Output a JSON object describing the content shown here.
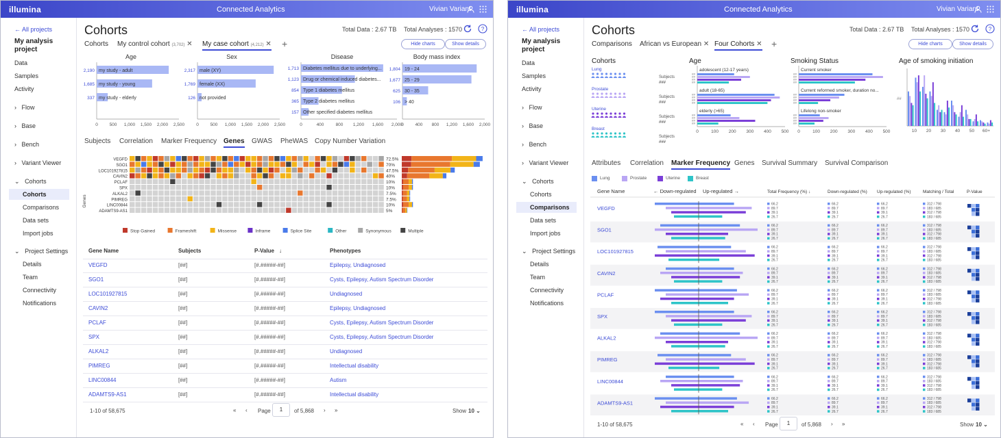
{
  "brand": "illumina",
  "app_title": "Connected Analytics",
  "user_name": "Vivian Variant",
  "left": {
    "nav": {
      "back": "All projects",
      "project": "My analysis project",
      "items": [
        "Data",
        "Samples",
        "Activity"
      ],
      "groups": [
        "Flow",
        "Base",
        "Bench",
        "Variant Viewer"
      ],
      "cohorts_group": "Cohorts",
      "cohort_items": [
        "Cohorts",
        "Comparisons",
        "Data sets",
        "Import jobs"
      ],
      "settings_group": "Project Settings",
      "settings_items": [
        "Details",
        "Team",
        "Connectivity",
        "Notifications"
      ]
    },
    "title": "Cohorts",
    "total_data": "Total Data : 2.67 TB",
    "total_analyses": "Total Analyses : 1570",
    "tabs": [
      {
        "label": "Cohorts"
      },
      {
        "label": "My control cohort",
        "count": "(3,702)"
      },
      {
        "label": "My case cohort",
        "count": "(4,212)"
      }
    ],
    "hide_charts": "Hide charts",
    "show_details": "Show details",
    "charts": {
      "age": {
        "title": "Age",
        "bars": [
          {
            "label": "my study - adult",
            "value": 2190,
            "display": "2,190"
          },
          {
            "label": "my study - young",
            "value": 1685,
            "display": "1,685"
          },
          {
            "label": "my study - elderly",
            "value": 337,
            "display": "337"
          }
        ],
        "ticks": [
          "0",
          "500",
          "1,000",
          "1,500",
          "2,000",
          "2,500"
        ],
        "max": 2500
      },
      "sex": {
        "title": "Sex",
        "bars": [
          {
            "label": "male (XY)",
            "value": 2317,
            "display": "2,317"
          },
          {
            "label": "female (XX)",
            "value": 1769,
            "display": "1,769"
          },
          {
            "label": "not provided",
            "value": 126,
            "display": "126"
          }
        ],
        "ticks": [
          "0",
          "500",
          "1,000",
          "1,500",
          "2,000",
          "2,500"
        ],
        "max": 2500
      },
      "disease": {
        "title": "Disease",
        "bars": [
          {
            "label": "Diabetes mellitus due to underlying...",
            "value": 1713,
            "display": "1,713"
          },
          {
            "label": "Drug or chemical induced diabetes...",
            "value": 1123,
            "display": "1,123"
          },
          {
            "label": "Type 1 diabetes mellitus",
            "value": 854,
            "display": "854"
          },
          {
            "label": "Type 2 diabetes mellitus",
            "value": 365,
            "display": "365"
          },
          {
            "label": "Other specified diabetes mellitus",
            "value": 157,
            "display": "157"
          }
        ],
        "ticks": [
          "0",
          "400",
          "800",
          "1,200",
          "1,600",
          "2,000"
        ],
        "max": 2000
      },
      "bmi": {
        "title": "Body mass index",
        "bars": [
          {
            "label": "19 - 24",
            "value": 1804,
            "display": "1,804"
          },
          {
            "label": "25 - 29",
            "value": 1677,
            "display": "1,677"
          },
          {
            "label": "30 - 35",
            "value": 625,
            "display": "625"
          },
          {
            "label": "> 40",
            "value": 106,
            "display": "106"
          }
        ],
        "ticks": [
          "0",
          "400",
          "800",
          "1,200",
          "1,600",
          "2,000"
        ],
        "max": 2000
      }
    },
    "subtabs": [
      "Subjects",
      "Correlation",
      "Marker Frequency",
      "Genes",
      "GWAS",
      "PheWAS",
      "Copy Number Variation"
    ],
    "oncoprint": {
      "ylabel": "Genes",
      "genes": [
        "VEGFD",
        "SGO1",
        "LOC101927815",
        "CAVIN2",
        "PCLAF",
        "SPX",
        "ALKAL2",
        "PIMREG",
        "LINC00844",
        "ADAMTS9-AS1"
      ],
      "percents": [
        "72.5%",
        "70%",
        "47.5%",
        "40%",
        "10%",
        "10%",
        "7.5%",
        "7.5%",
        "10%",
        "5%"
      ],
      "pct_values": [
        72.5,
        70,
        47.5,
        40,
        10,
        10,
        7.5,
        7.5,
        10,
        5
      ],
      "legend": [
        {
          "label": "Stop Gained",
          "color": "#c0392b"
        },
        {
          "label": "Frameshift",
          "color": "#e8772e"
        },
        {
          "label": "Missense",
          "color": "#f2b418"
        },
        {
          "label": "Inframe",
          "color": "#6a32c8"
        },
        {
          "label": "Splice Site",
          "color": "#4a7bea"
        },
        {
          "label": "Other",
          "color": "#2bb7c4"
        },
        {
          "label": "Synonymous",
          "color": "#a6a6a6"
        },
        {
          "label": "Multiple",
          "color": "#444444"
        }
      ]
    },
    "table": {
      "headers": [
        "Gene Name",
        "Subjects",
        "P-Value",
        "Phenotypes"
      ],
      "rows": [
        {
          "gene": "VEGFD",
          "subjects": "[##]",
          "pvalue": "[#.#####-##]",
          "phenotypes": "Epilepsy, Undiagnosed"
        },
        {
          "gene": "SGO1",
          "subjects": "[##]",
          "pvalue": "[#.#####-##]",
          "phenotypes": "Cysts, Epilepsy, Autism Spectrum Disorder"
        },
        {
          "gene": "LOC101927815",
          "subjects": "[##]",
          "pvalue": "[#.#####-##]",
          "phenotypes": "Undiagnosed"
        },
        {
          "gene": "CAVIN2",
          "subjects": "[##]",
          "pvalue": "[#.#####-##]",
          "phenotypes": "Epilepsy, Undiagnosed"
        },
        {
          "gene": "PCLAF",
          "subjects": "[##]",
          "pvalue": "[#.#####-##]",
          "phenotypes": "Cysts, Epilepsy, Autism Spectrum Disorder"
        },
        {
          "gene": "SPX",
          "subjects": "[##]",
          "pvalue": "[#.#####-##]",
          "phenotypes": "Cysts, Epilepsy, Autism Spectrum Disorder"
        },
        {
          "gene": "ALKAL2",
          "subjects": "[##]",
          "pvalue": "[#.#####-##]",
          "phenotypes": "Undiagnosed"
        },
        {
          "gene": "PIMREG",
          "subjects": "[##]",
          "pvalue": "[#.#####-##]",
          "phenotypes": "Intellectual disability"
        },
        {
          "gene": "LINC00844",
          "subjects": "[##]",
          "pvalue": "[#.#####-##]",
          "phenotypes": "Autism"
        },
        {
          "gene": "ADAMTS9-AS1",
          "subjects": "[##]",
          "pvalue": "[#.#####-##]",
          "phenotypes": "Intellectual disability"
        }
      ]
    },
    "pagination": {
      "range": "1-10 of 58,675",
      "page_label": "Page",
      "page": "1",
      "of": "of 5,868",
      "show_label": "Show",
      "show_value": "10"
    }
  },
  "right": {
    "title": "Cohorts",
    "total_data": "Total Data : 2.67 TB",
    "total_analyses": "Total Analyses : 1570",
    "tabs": [
      {
        "label": "Comparisons"
      },
      {
        "label": "African vs European"
      },
      {
        "label": "Four Cohorts"
      }
    ],
    "hide_charts": "Hide charts",
    "show_details": "Show details",
    "cohorts_chart": {
      "title": "Cohorts",
      "subjects_label": "Subjects",
      "subjects_value": "###",
      "items": [
        {
          "name": "Lung",
          "color": "#6b8ff0"
        },
        {
          "name": "Prostate",
          "color": "#b9a6f4"
        },
        {
          "name": "Uterine",
          "color": "#7b3fd8"
        },
        {
          "name": "Breast",
          "color": "#2ec4c8"
        }
      ]
    },
    "age_chart": {
      "title": "Age",
      "groups": [
        {
          "label": "adolescent (12-17 years)",
          "values": [
            210,
            300,
            250,
            180
          ]
        },
        {
          "label": "adult (18-65)",
          "values": [
            440,
            470,
            420,
            400
          ]
        },
        {
          "label": "elderly (>65)",
          "values": [
            190,
            240,
            330,
            120
          ]
        }
      ],
      "ticks": [
        "0",
        "100",
        "200",
        "300",
        "400",
        "500"
      ],
      "max": 500,
      "hash": "##"
    },
    "smoking_chart": {
      "title": "Smoking Status",
      "groups": [
        {
          "label": "Current smoker",
          "values": [
            420,
            480,
            380,
            320
          ]
        },
        {
          "label": "Current reformed smoker, duration no...",
          "values": [
            260,
            230,
            180,
            110
          ]
        },
        {
          "label": "Lifelong non-smoker",
          "values": [
            120,
            170,
            140,
            90
          ]
        }
      ],
      "ticks": [
        "0",
        "100",
        "200",
        "300",
        "400",
        "500"
      ],
      "max": 500,
      "hash": "##"
    },
    "initiation_chart": {
      "title": "Age of smoking initiation",
      "categories": [
        "10",
        "20",
        "30",
        "40",
        "50",
        "60+"
      ],
      "series": [
        {
          "name": "Lung",
          "values": [
            30,
            42,
            34,
            30,
            14,
            12,
            22,
            8,
            14,
            4,
            5,
            3
          ]
        },
        {
          "name": "Prostate",
          "values": [
            26,
            38,
            44,
            26,
            18,
            10,
            18,
            12,
            10,
            6,
            4,
            2
          ]
        },
        {
          "name": "Uterine",
          "values": [
            20,
            44,
            28,
            38,
            12,
            22,
            12,
            18,
            6,
            10,
            3,
            5
          ]
        },
        {
          "name": "Breast",
          "values": [
            18,
            30,
            24,
            20,
            14,
            16,
            10,
            8,
            6,
            4,
            2,
            3
          ]
        }
      ],
      "ticks": [
        "0",
        "10",
        "20",
        "30",
        "40",
        "50"
      ],
      "max": 50,
      "ylabel": "##"
    },
    "subtabs": [
      "Attributes",
      "Correlation",
      "Marker Frequency",
      "Genes",
      "Survival Summary",
      "Survival Comparison"
    ],
    "legend": [
      "Lung",
      "Prostate",
      "Uterine",
      "Breast"
    ],
    "table": {
      "headers": {
        "gene": "Gene Name",
        "down": "Down-regulated",
        "up": "Up-regulated",
        "total": "Total Frequency",
        "down2": "Down-regulated",
        "up2": "Up-regulated",
        "match": "Matching / Total",
        "p": "P-Value",
        "pct": "(%)"
      },
      "genes": [
        "VEGFD",
        "SGO1",
        "LOC101927815",
        "CAVIN2",
        "PCLAF",
        "SPX",
        "ALKAL2",
        "PIMREG",
        "LINC00844",
        "ADAMTS9-AS1"
      ],
      "freq": [
        "66.2",
        "89.7",
        "39.1",
        "26.7"
      ],
      "match": [
        "312 / 798",
        "183 / 685",
        "312 / 798",
        "183 / 685"
      ]
    },
    "pagination": {
      "range": "1-10 of 58,675",
      "page_label": "Page",
      "page": "1",
      "of": "of 5,868",
      "show_label": "Show",
      "show_value": "10"
    }
  }
}
